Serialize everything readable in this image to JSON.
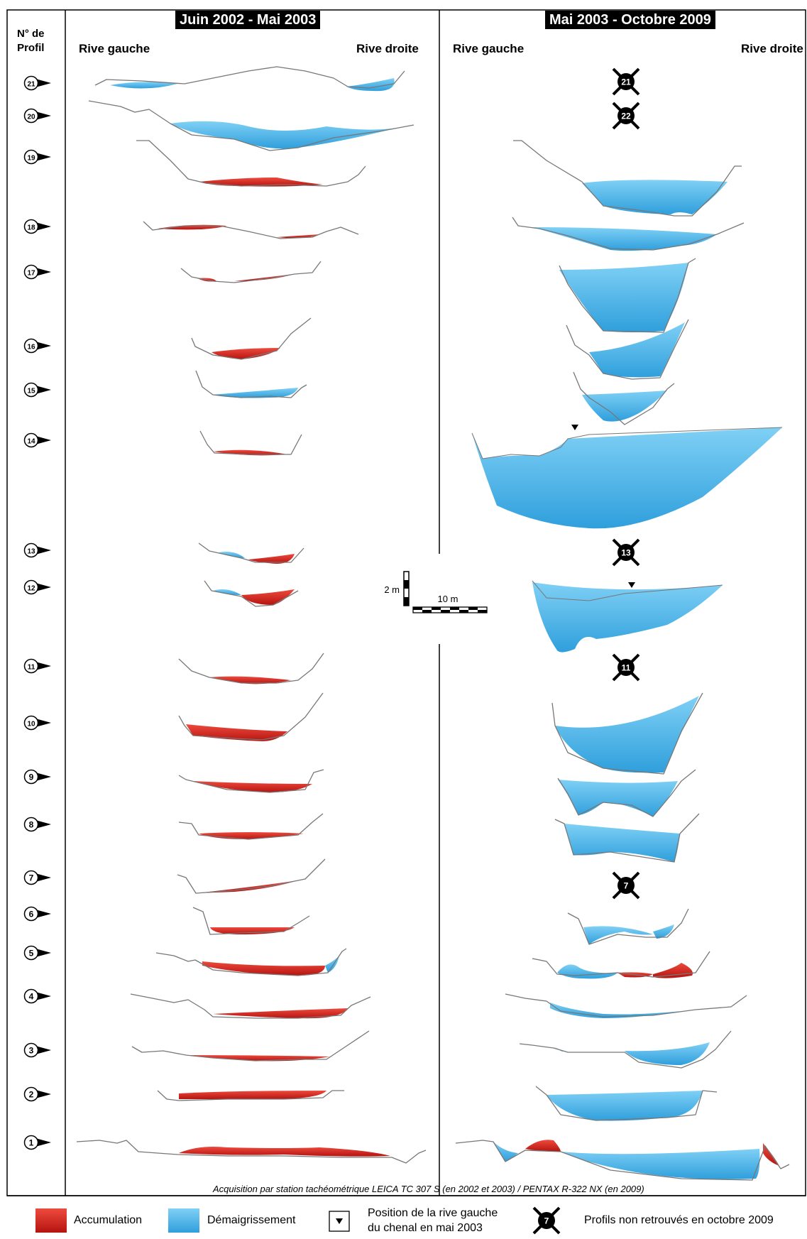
{
  "headers": {
    "period_left": "Juin 2002 - Mai 2003",
    "period_right": "Mai 2003 - Octobre 2009",
    "profile_col": "N° de\nProfil",
    "bank_left": "Rive gauche",
    "bank_right": "Rive droite"
  },
  "scale": {
    "vertical": "2 m",
    "horizontal": "10 m"
  },
  "credit": "Acquisition par station tachéométrique LEICA TC 307 S (en 2002 et 2003) / PENTAX R-322 NX (en 2009)",
  "legend": {
    "accumulation": "Accumulation",
    "erosion": "Démaigrissement",
    "bank_position_line1": "Position de la rive gauche",
    "bank_position_line2": "du chenal en mai 2003",
    "missing": "Profils non retrouvés en octobre 2009",
    "missing_example": "7"
  },
  "colors": {
    "accumulation": "#d8201c",
    "erosion": "#45b4ea",
    "line": "#777777"
  },
  "profiles": [
    {
      "n": "21",
      "missing2009": true
    },
    {
      "n": "20",
      "missing2009": false
    },
    {
      "n": "19",
      "missing2009": false
    },
    {
      "n": "18",
      "missing2009": false
    },
    {
      "n": "17",
      "missing2009": false
    },
    {
      "n": "16",
      "missing2009": false
    },
    {
      "n": "15",
      "missing2009": false
    },
    {
      "n": "14",
      "missing2009": false
    },
    {
      "n": "13",
      "missing2009": true
    },
    {
      "n": "12",
      "missing2009": false
    },
    {
      "n": "11",
      "missing2009": true
    },
    {
      "n": "10",
      "missing2009": false
    },
    {
      "n": "9",
      "missing2009": false
    },
    {
      "n": "8",
      "missing2009": false
    },
    {
      "n": "7",
      "missing2009": true
    },
    {
      "n": "6",
      "missing2009": false
    },
    {
      "n": "5",
      "missing2009": false
    },
    {
      "n": "4",
      "missing2009": false
    },
    {
      "n": "3",
      "missing2009": false
    },
    {
      "n": "2",
      "missing2009": false
    },
    {
      "n": "1",
      "missing2009": false
    }
  ],
  "missing_profile_22": "22"
}
